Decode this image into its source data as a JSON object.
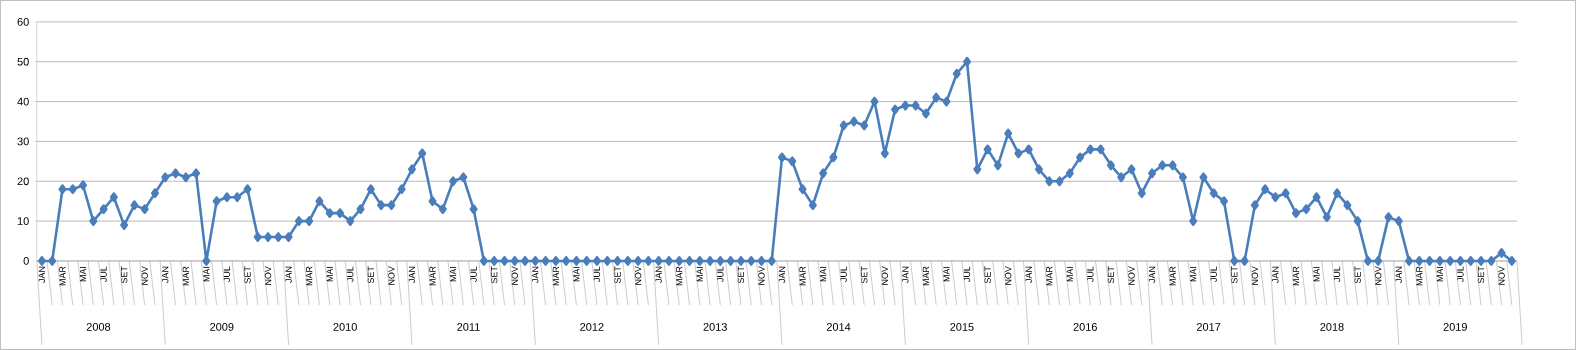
{
  "chart_data": {
    "type": "line",
    "categories": [
      "JAN",
      null,
      "MAR",
      null,
      "MAI",
      null,
      "JUL",
      null,
      "SET",
      null,
      "NOV",
      null,
      "JAN",
      null,
      "MAR",
      null,
      "MAI",
      null,
      "JUL",
      null,
      "SET",
      null,
      "NOV",
      null,
      "JAN",
      null,
      "MAR",
      null,
      "MAI",
      null,
      "JUL",
      null,
      "SET",
      null,
      "NOV",
      null,
      "JAN",
      null,
      "MAR",
      null,
      "MAI",
      null,
      "JUL",
      null,
      "SET",
      null,
      "NOV",
      null,
      "JAN",
      null,
      "MAR",
      null,
      "MAI",
      null,
      "JUL",
      null,
      "SET",
      null,
      "NOV",
      null,
      "JAN",
      null,
      "MAR",
      null,
      "MAI",
      null,
      "JUL",
      null,
      "SET",
      null,
      "NOV",
      null,
      "JAN",
      null,
      "MAR",
      null,
      "MAI",
      null,
      "JUL",
      null,
      "SET",
      null,
      "NOV",
      null,
      "JAN",
      null,
      "MAR",
      null,
      "MAI",
      null,
      "JUL",
      null,
      "SET",
      null,
      "NOV",
      null,
      "JAN",
      null,
      "MAR",
      null,
      "MAI",
      null,
      "JUL",
      null,
      "SET",
      null,
      "NOV",
      null,
      "JAN",
      null,
      "MAR",
      null,
      "MAI",
      null,
      "JUL",
      null,
      "SET",
      null,
      "NOV",
      null,
      "JAN",
      null,
      "MAR",
      null,
      "MAI",
      null,
      "JUL",
      null,
      "SET",
      null,
      "NOV",
      null,
      "JAN",
      null,
      "MAR",
      null,
      "MAI",
      null,
      "JUL",
      null,
      "SET",
      null,
      "NOV",
      null
    ],
    "values": [
      0,
      0,
      18,
      18,
      19,
      10,
      13,
      16,
      9,
      14,
      13,
      17,
      21,
      22,
      21,
      22,
      0,
      15,
      16,
      16,
      18,
      6,
      6,
      6,
      6,
      10,
      10,
      15,
      12,
      12,
      10,
      13,
      18,
      14,
      14,
      18,
      23,
      27,
      15,
      13,
      20,
      21,
      13,
      0,
      0,
      0,
      0,
      0,
      0,
      0,
      0,
      0,
      0,
      0,
      0,
      0,
      0,
      0,
      0,
      0,
      0,
      0,
      0,
      0,
      0,
      0,
      0,
      0,
      0,
      0,
      0,
      0,
      26,
      25,
      18,
      14,
      22,
      26,
      34,
      35,
      34,
      40,
      27,
      38,
      39,
      39,
      37,
      41,
      40,
      47,
      50,
      23,
      28,
      24,
      32,
      27,
      28,
      23,
      20,
      20,
      22,
      26,
      28,
      28,
      24,
      21,
      23,
      17,
      22,
      24,
      24,
      21,
      10,
      21,
      17,
      15,
      0,
      0,
      14,
      18,
      16,
      17,
      12,
      13,
      16,
      11,
      17,
      14,
      10,
      0,
      0,
      11,
      10,
      0,
      0,
      0,
      0,
      0,
      0,
      0,
      0,
      0,
      2,
      0
    ],
    "annotations": [
      "2008",
      "2009",
      "2010",
      "2011",
      "2012",
      "2013",
      "2014",
      "2015",
      "2016",
      "2017",
      "2018",
      "2019"
    ],
    "color": "#4a7ebb",
    "marker": "diamond",
    "grid": "y",
    "ylim": [
      0,
      60
    ],
    "yticks": [
      0,
      10,
      20,
      30,
      40,
      50,
      60
    ]
  }
}
